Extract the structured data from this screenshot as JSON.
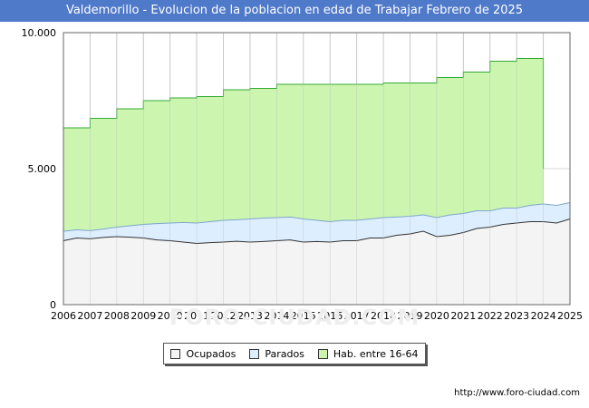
{
  "title": "Valdemorillo - Evolucion de la poblacion en edad de Trabajar Febrero de 2025",
  "watermark": "FORO-CIUDAD.COM",
  "source": "http://www.foro-ciudad.com",
  "colors": {
    "title_bg": "#4f79c9",
    "ocupados_fill": "#f4f4f4",
    "ocupados_line": "#333333",
    "parados_fill": "#ddeeff",
    "parados_line": "#7fa6cc",
    "hab_fill": "#ccf5b0",
    "hab_line": "#33aa33"
  },
  "legend": [
    {
      "key": "ocupados",
      "label": "Ocupados",
      "color": "#f4f4f4"
    },
    {
      "key": "parados",
      "label": "Parados",
      "color": "#ddeeff"
    },
    {
      "key": "hab",
      "label": "Hab. entre 16-64",
      "color": "#ccf5b0"
    }
  ],
  "chart_data": {
    "type": "area",
    "title": "Valdemorillo - Evolucion de la poblacion en edad de Trabajar Febrero de 2025",
    "xlabel": "",
    "ylabel": "",
    "xlim": [
      2006,
      2025
    ],
    "ylim": [
      0,
      10000
    ],
    "x_ticks": [
      "2006",
      "2007",
      "2008",
      "2009",
      "2010",
      "2011",
      "2012",
      "2013",
      "2014",
      "2015",
      "2016",
      "2017",
      "2018",
      "2019",
      "2020",
      "2021",
      "2022",
      "2023",
      "2024",
      "2025"
    ],
    "y_ticks": [
      {
        "value": 0,
        "label": "0"
      },
      {
        "value": 5000,
        "label": "5.000"
      },
      {
        "value": 10000,
        "label": "10.000"
      }
    ],
    "grid": true,
    "legend_position": "bottom",
    "series": [
      {
        "key": "hab",
        "name": "Hab. entre 16-64",
        "x": [
          2006,
          2007,
          2008,
          2009,
          2010,
          2011,
          2012,
          2013,
          2014,
          2015,
          2016,
          2017,
          2018,
          2019,
          2020,
          2021,
          2022,
          2023,
          2024
        ],
        "values": [
          6500,
          6850,
          7200,
          7500,
          7600,
          7650,
          7900,
          7950,
          8100,
          8100,
          8100,
          8100,
          8150,
          8150,
          8350,
          8550,
          8950,
          9050,
          5000
        ]
      },
      {
        "key": "parados",
        "name": "Parados",
        "x": [
          2006,
          2006.5,
          2007,
          2007.5,
          2008,
          2008.5,
          2009,
          2009.5,
          2010,
          2010.5,
          2011,
          2011.5,
          2012,
          2012.5,
          2013,
          2013.5,
          2014,
          2014.5,
          2015,
          2015.5,
          2016,
          2016.5,
          2017,
          2017.5,
          2018,
          2018.5,
          2019,
          2019.5,
          2020,
          2020.5,
          2021,
          2021.5,
          2022,
          2022.5,
          2023,
          2023.5,
          2024,
          2024.5,
          2025
        ],
        "values": [
          2700,
          2750,
          2720,
          2780,
          2850,
          2900,
          2950,
          2980,
          3000,
          3020,
          3000,
          3050,
          3100,
          3120,
          3150,
          3180,
          3200,
          3220,
          3150,
          3100,
          3050,
          3100,
          3100,
          3150,
          3200,
          3220,
          3250,
          3300,
          3200,
          3300,
          3350,
          3450,
          3450,
          3550,
          3550,
          3650,
          3700,
          3650,
          3750
        ]
      },
      {
        "key": "ocupados",
        "name": "Ocupados",
        "x": [
          2006,
          2006.5,
          2007,
          2007.5,
          2008,
          2008.5,
          2009,
          2009.5,
          2010,
          2010.5,
          2011,
          2011.5,
          2012,
          2012.5,
          2013,
          2013.5,
          2014,
          2014.5,
          2015,
          2015.5,
          2016,
          2016.5,
          2017,
          2017.5,
          2018,
          2018.5,
          2019,
          2019.5,
          2020,
          2020.5,
          2021,
          2021.5,
          2022,
          2022.5,
          2023,
          2023.5,
          2024,
          2024.5,
          2025
        ],
        "values": [
          2350,
          2450,
          2420,
          2470,
          2500,
          2480,
          2450,
          2380,
          2350,
          2300,
          2250,
          2280,
          2300,
          2330,
          2300,
          2320,
          2350,
          2380,
          2300,
          2320,
          2300,
          2350,
          2350,
          2450,
          2450,
          2550,
          2600,
          2700,
          2500,
          2550,
          2650,
          2800,
          2850,
          2950,
          3000,
          3050,
          3050,
          3000,
          3150
        ]
      }
    ]
  }
}
